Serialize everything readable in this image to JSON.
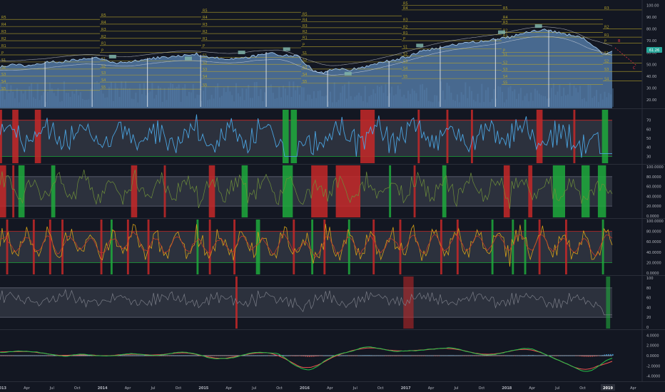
{
  "colors": {
    "background": "#131722",
    "panel_separator": "#2a2e39",
    "price_fill": "#5b86b4",
    "price_line": "#9fc3e6",
    "pivot_line": "#b6a42a",
    "ma_line": "#d8dbe3",
    "overbought": "#c62828",
    "oversold": "#1faa3c",
    "band_fill": "#5d6070",
    "rsi_line": "#4aa3df",
    "mfi_line": "#6e8f3a",
    "stoch_k": "#d4a017",
    "stoch_d": "#c0392b",
    "gray_osc": "#7b7e88",
    "macd_up": "#26a69a",
    "macd_down": "#ef5350",
    "price_tag_bg": "#26a69a",
    "wave_label": "#f23645"
  },
  "time_axis": {
    "labels": [
      "2013",
      "Apr",
      "Jul",
      "Oct",
      "2014",
      "Apr",
      "Jul",
      "Oct",
      "2015",
      "Apr",
      "Jul",
      "Oct",
      "2016",
      "Apr",
      "Jul",
      "Oct",
      "2017",
      "Apr",
      "Jul",
      "Oct",
      "2018",
      "Apr",
      "Jul",
      "Oct",
      "2019",
      "Apr"
    ],
    "highlight": "2019"
  },
  "panels": {
    "price": {
      "axis_labels": [
        "100.00",
        "90.00",
        "80.00",
        "70.00",
        "60.00",
        "50.00",
        "40.00",
        "30.00",
        "20.00"
      ],
      "axis_values": [
        100,
        90,
        80,
        70,
        60,
        50,
        40,
        30,
        20
      ],
      "current_price": "61.26",
      "pivot_labels": {
        "group1": [
          "R5",
          "R4",
          "R3",
          "R2",
          "R1",
          "P",
          "S1",
          "S2",
          "S3",
          "S4",
          "S5"
        ],
        "group2": [
          "R5",
          "R4",
          "R3",
          "R2",
          "R1",
          "P",
          "S1",
          "S2",
          "S3",
          "S4",
          "S5"
        ],
        "group3": [
          "R5",
          "R4",
          "R3",
          "R2",
          "R1",
          "P",
          "S1",
          "S2",
          "S3",
          "S4",
          "S5"
        ],
        "group4": [
          "R3",
          "R2",
          "R1",
          "P",
          "S1",
          "S2",
          "S3",
          "S4"
        ]
      },
      "wave_labels": [
        "B",
        "C"
      ]
    },
    "rsi": {
      "axis_labels": [
        "70",
        "60",
        "50",
        "40",
        "30"
      ],
      "axis_values": [
        70,
        60,
        50,
        40,
        30
      ]
    },
    "mfi": {
      "axis_labels": [
        "100.0000",
        "80.0000",
        "60.0000",
        "40.0000",
        "20.0000",
        "0.0000"
      ],
      "axis_values": [
        100,
        80,
        60,
        40,
        20,
        0
      ]
    },
    "stoch": {
      "axis_labels": [
        "100.0000",
        "80.0000",
        "60.0000",
        "40.0000",
        "20.0000",
        "0.0000"
      ],
      "axis_values": [
        100,
        80,
        60,
        40,
        20,
        0
      ]
    },
    "osc": {
      "axis_labels": [
        "100",
        "80",
        "60",
        "40",
        "20",
        "0"
      ],
      "axis_values": [
        100,
        80,
        60,
        40,
        20,
        0
      ]
    },
    "macd": {
      "axis_labels": [
        "4.0000",
        "2.0000",
        "0.0000",
        "-2.0000",
        "-4.0000"
      ],
      "axis_values": [
        4,
        2,
        0,
        -2,
        -4
      ]
    }
  },
  "chart_data": {
    "type": "line",
    "x_start": "2013-01",
    "x_end": "2019-01",
    "monthly_close": [
      48,
      49,
      50,
      49,
      50,
      51,
      52,
      52,
      53,
      54,
      55,
      56,
      54,
      52,
      51,
      52,
      53,
      54,
      55,
      56,
      56,
      57,
      58,
      59,
      57,
      56,
      55,
      54,
      55,
      56,
      57,
      58,
      59,
      58,
      57,
      58,
      50,
      44,
      43,
      45,
      46,
      45,
      47,
      48,
      50,
      52,
      53,
      55,
      56,
      60,
      62,
      63,
      64,
      66,
      67,
      68,
      69,
      70,
      71,
      72,
      73,
      75,
      77,
      78,
      79,
      78,
      76,
      75,
      74,
      70,
      64,
      58,
      61
    ]
  }
}
